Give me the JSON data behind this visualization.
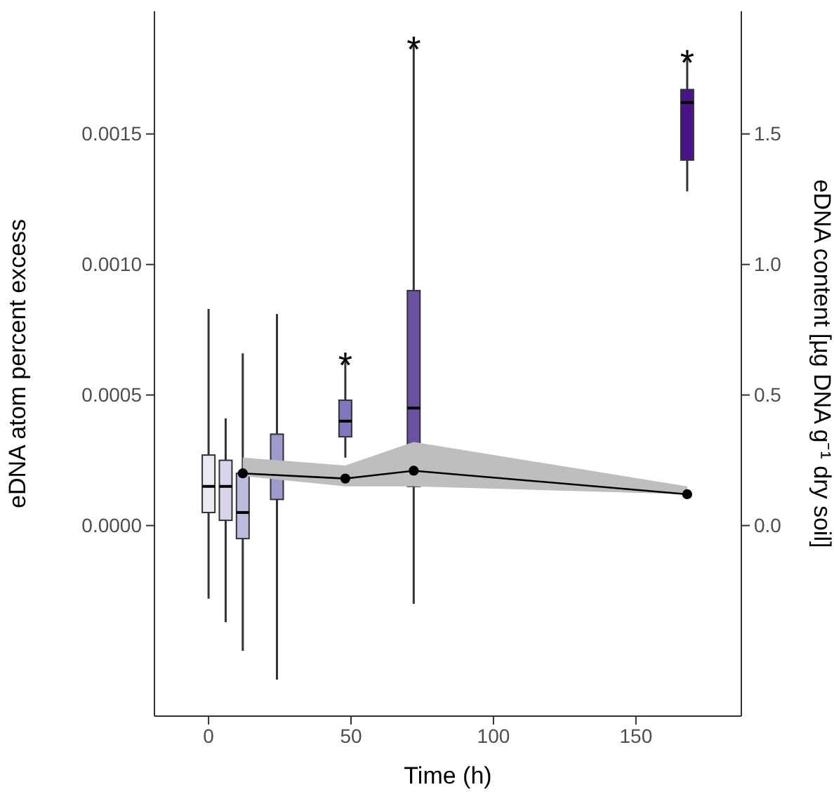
{
  "chart_data": {
    "type": "box",
    "xlabel": "Time (h)",
    "ylabel": "eDNA atom percent excess",
    "y2label": "eDNA content [µg DNA g⁻¹ dry soil]",
    "xlim": [
      -19,
      187
    ],
    "xticks": [
      0,
      50,
      100,
      150
    ],
    "ylim": [
      -0.00073,
      0.00197
    ],
    "yticks": [
      {
        "value": 0,
        "label": "0.0000"
      },
      {
        "value": 0.0005,
        "label": "0.0005"
      },
      {
        "value": 0.001,
        "label": "0.0010"
      },
      {
        "value": 0.0015,
        "label": "0.0015"
      }
    ],
    "y2lim": [
      -0.73,
      1.97
    ],
    "y2ticks": [
      {
        "value": 0,
        "label": "0.0"
      },
      {
        "value": 0.5,
        "label": "0.5"
      },
      {
        "value": 1,
        "label": "1.0"
      },
      {
        "value": 1.5,
        "label": "1.5"
      }
    ],
    "grid": false,
    "series": [
      {
        "x": [
          0,
          6,
          12,
          24,
          48,
          72,
          168
        ],
        "colors": [
          "#ebe9f4",
          "#d8d5ea",
          "#bcbadd",
          "#9e9acb",
          "#7f78bd",
          "#6a51a3",
          "#4a1486"
        ],
        "boxes": [
          {
            "low": -0.00028,
            "q1": 5e-05,
            "median": 0.00015,
            "q3": 0.00027,
            "high": 0.00083
          },
          {
            "low": -0.00037,
            "q1": 2e-05,
            "median": 0.00015,
            "q3": 0.00025,
            "high": 0.00041
          },
          {
            "low": -0.00048,
            "q1": -5e-05,
            "median": 5e-05,
            "q3": 0.0002,
            "high": 0.00066
          },
          {
            "low": -0.00059,
            "q1": 0.0001,
            "median": 0.00022,
            "q3": 0.00035,
            "high": 0.00081
          },
          {
            "low": 0.00026,
            "q1": 0.00034,
            "median": 0.0004,
            "q3": 0.00048,
            "high": 0.00063
          },
          {
            "low": -0.0003,
            "q1": 0.00015,
            "median": 0.00045,
            "q3": 0.0009,
            "high": 0.00184
          },
          {
            "low": 0.00128,
            "q1": 0.0014,
            "median": 0.00162,
            "q3": 0.00167,
            "high": 0.00179
          }
        ]
      },
      {
        "type": "line",
        "axis": "y2",
        "color": "#000000",
        "marker": "circle",
        "x": [
          12,
          48,
          72,
          168
        ],
        "values": [
          0.2,
          0.18,
          0.21,
          0.12
        ],
        "lower": [
          0.19,
          0.15,
          0.15,
          0.12
        ],
        "upper": [
          0.26,
          0.23,
          0.32,
          0.15
        ]
      }
    ],
    "annotations": [
      {
        "text": "*",
        "x": 48,
        "y": 0.00063
      },
      {
        "text": "*",
        "x": 72,
        "y": 0.00184
      },
      {
        "text": "*",
        "x": 168,
        "y": 0.00179
      }
    ]
  }
}
